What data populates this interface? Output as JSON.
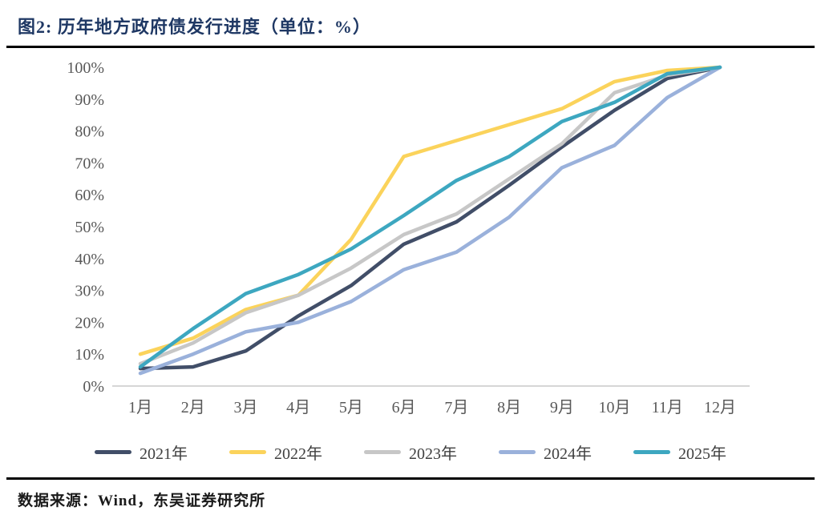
{
  "figure": {
    "title": "图2:  历年地方政府债发行进度（单位：%）",
    "source": "数据来源：Wind，东吴证券研究所"
  },
  "chart_data": {
    "type": "line",
    "title": "历年地方政府债发行进度",
    "unit": "%",
    "xlabel": "",
    "ylabel": "",
    "ylim": [
      0,
      100
    ],
    "grid": false,
    "legend_position": "bottom",
    "axis_line_color": "#D6D6D6",
    "yticks": [
      "0%",
      "10%",
      "20%",
      "30%",
      "40%",
      "50%",
      "60%",
      "70%",
      "80%",
      "90%",
      "100%"
    ],
    "categories": [
      "1月",
      "2月",
      "3月",
      "4月",
      "5月",
      "6月",
      "7月",
      "8月",
      "9月",
      "10月",
      "11月",
      "12月"
    ],
    "series": [
      {
        "name": "2021年",
        "color": "#414E68",
        "values": [
          5.5,
          6,
          11,
          22,
          31.5,
          44.5,
          51.5,
          63,
          75,
          86.5,
          96.5,
          100
        ]
      },
      {
        "name": "2022年",
        "color": "#FBD35B",
        "values": [
          10,
          15,
          24,
          28.5,
          46,
          72,
          77,
          82,
          87,
          95.5,
          99,
          100
        ]
      },
      {
        "name": "2023年",
        "color": "#C7C7C7",
        "values": [
          7,
          13.5,
          23,
          28.5,
          37,
          47.5,
          54,
          65,
          76,
          92,
          97.5,
          100
        ]
      },
      {
        "name": "2024年",
        "color": "#9AB1DB",
        "values": [
          4,
          10,
          17,
          20,
          26.5,
          36.5,
          42,
          53,
          68.5,
          75.5,
          90.5,
          100
        ]
      },
      {
        "name": "2025年",
        "color": "#3DA7C0",
        "values": [
          6,
          18,
          29,
          35,
          43,
          53.5,
          64.5,
          72,
          83,
          89,
          98,
          100
        ]
      }
    ]
  }
}
